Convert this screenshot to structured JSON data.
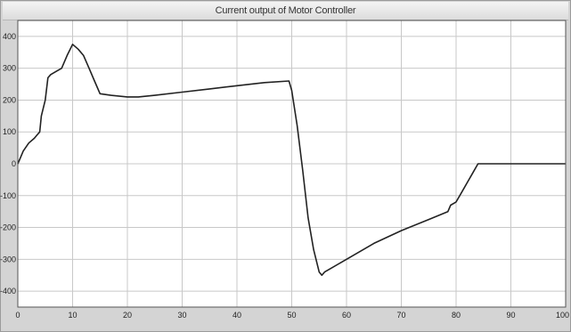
{
  "window": {
    "title": "Current output of Motor Controller"
  },
  "colors": {
    "plot_background": "#ffffff",
    "grid": "#c8c8c8",
    "line": "#222222",
    "frame": "#555555"
  },
  "chart_data": {
    "type": "line",
    "title": "Current output of Motor Controller",
    "xlabel": "",
    "ylabel": "",
    "xlim": [
      0,
      100
    ],
    "ylim": [
      -450,
      450
    ],
    "grid": true,
    "x_ticks": [
      0,
      10,
      20,
      30,
      40,
      50,
      60,
      70,
      80,
      90,
      100
    ],
    "y_ticks": [
      -400,
      -300,
      -200,
      -100,
      0,
      100,
      200,
      300,
      400
    ],
    "series": [
      {
        "name": "",
        "x": [
          0,
          0.5,
          1,
          2,
          3,
          3.5,
          4,
          4.3,
          5,
          5.5,
          6,
          7,
          8,
          9,
          10,
          11,
          12,
          13,
          14,
          15,
          17,
          20,
          22,
          25,
          30,
          35,
          40,
          45,
          49.5,
          50,
          51,
          52,
          53,
          54,
          55,
          55.5,
          56,
          57,
          59,
          62,
          65,
          70,
          75,
          78.5,
          79,
          80,
          81,
          82,
          83,
          84,
          85,
          90,
          95,
          100
        ],
        "y": [
          0,
          20,
          40,
          65,
          80,
          90,
          100,
          150,
          200,
          270,
          280,
          290,
          300,
          340,
          375,
          360,
          340,
          300,
          260,
          220,
          215,
          210,
          210,
          215,
          225,
          235,
          245,
          255,
          260,
          230,
          120,
          -20,
          -170,
          -270,
          -340,
          -350,
          -340,
          -330,
          -310,
          -280,
          -250,
          -210,
          -175,
          -150,
          -130,
          -120,
          -90,
          -60,
          -30,
          0,
          0,
          0,
          0,
          0
        ]
      }
    ]
  }
}
